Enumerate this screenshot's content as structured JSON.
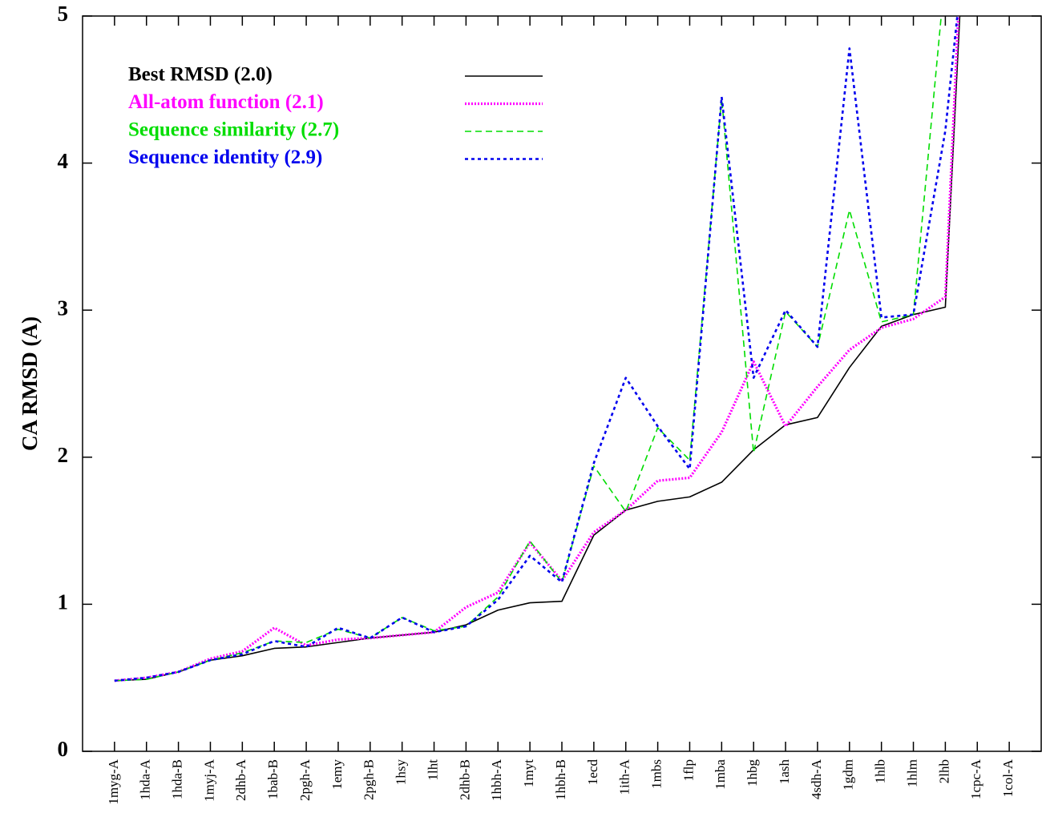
{
  "chart_data": {
    "type": "line",
    "ylabel": "CA RMSD (A)",
    "categories": [
      "1myg-A",
      "1hda-A",
      "1hda-B",
      "1myj-A",
      "2dhb-A",
      "1bab-B",
      "2pgh-A",
      "1emy",
      "2pgh-B",
      "1hsy",
      "1lht",
      "2dhb-B",
      "1hbh-A",
      "1myt",
      "1hbh-B",
      "1ecd",
      "1ith-A",
      "1mbs",
      "1flp",
      "1mba",
      "1hbg",
      "1ash",
      "4sdh-A",
      "1gdm",
      "1hlb",
      "1hlm",
      "2lhb",
      "1cpc-A",
      "1col-A"
    ],
    "series": [
      {
        "name": "Best RMSD (2.0)",
        "color": "#000000",
        "values": [
          0.48,
          0.49,
          0.54,
          0.62,
          0.65,
          0.7,
          0.71,
          0.74,
          0.77,
          0.79,
          0.81,
          0.86,
          0.96,
          1.01,
          1.02,
          1.47,
          1.64,
          1.7,
          1.73,
          1.83,
          2.05,
          2.22,
          2.27,
          2.61,
          2.89,
          2.97,
          3.02,
          7.4,
          null
        ]
      },
      {
        "name": "All-atom function (2.1)",
        "color": "#ff00ff",
        "values": [
          0.48,
          0.5,
          0.54,
          0.63,
          0.68,
          0.84,
          0.72,
          0.76,
          0.77,
          0.79,
          0.81,
          0.98,
          1.08,
          1.42,
          1.16,
          1.49,
          1.64,
          1.84,
          1.86,
          2.17,
          2.65,
          2.21,
          2.48,
          2.73,
          2.88,
          2.94,
          3.09,
          7.8,
          null
        ]
      },
      {
        "name": "Sequence similarity (2.7)",
        "color": "#00dd00",
        "values": [
          0.48,
          0.49,
          0.54,
          0.62,
          0.67,
          0.75,
          0.74,
          0.83,
          0.77,
          0.91,
          0.82,
          0.85,
          1.05,
          1.43,
          1.15,
          1.94,
          1.63,
          2.2,
          1.98,
          4.44,
          2.03,
          2.99,
          2.75,
          3.68,
          2.92,
          2.97,
          5.3,
          8.0,
          null
        ]
      },
      {
        "name": "Sequence identity (2.9)",
        "color": "#0000ee",
        "values": [
          0.48,
          0.5,
          0.54,
          0.62,
          0.66,
          0.75,
          0.71,
          0.84,
          0.77,
          0.91,
          0.81,
          0.85,
          1.03,
          1.33,
          1.15,
          1.96,
          2.54,
          2.21,
          1.92,
          4.45,
          2.54,
          3.0,
          2.75,
          4.78,
          2.95,
          2.97,
          4.22,
          6.3,
          null
        ]
      }
    ],
    "ylim": [
      0,
      5
    ],
    "yticks": [
      0,
      1,
      2,
      3,
      4,
      5
    ],
    "grid": false,
    "legend": "upper left"
  }
}
